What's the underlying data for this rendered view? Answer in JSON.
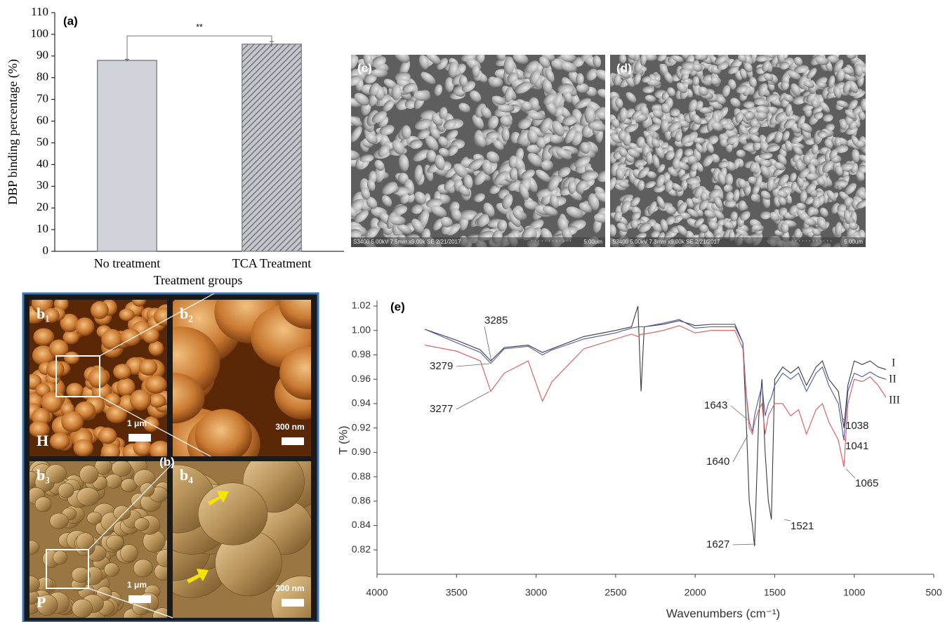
{
  "chart_data": [
    {
      "type": "bar",
      "panel": "(a)",
      "categories": [
        "No treatment",
        "TCA Treatment"
      ],
      "values": [
        88,
        95.5
      ],
      "errors": [
        0.5,
        1.2
      ],
      "colors": [
        "#d0d2da",
        "#5f636c"
      ],
      "hatch": [
        false,
        true
      ],
      "ylim": [
        0,
        110
      ],
      "yticks": [
        0,
        10,
        20,
        30,
        40,
        50,
        60,
        70,
        80,
        90,
        100,
        110
      ],
      "ylabel": "DBP binding percentage (%)",
      "xlabel": "Treatment groups",
      "annotation": "**"
    },
    {
      "type": "line",
      "panel": "(e)",
      "x": [
        3700,
        3500,
        3350,
        3285,
        3200,
        3050,
        2960,
        2900,
        2700,
        2500,
        2400,
        2360,
        2340,
        2320,
        2200,
        2100,
        2000,
        1900,
        1750,
        1700,
        1680,
        1660,
        1640,
        1627,
        1600,
        1580,
        1560,
        1540,
        1521,
        1500,
        1450,
        1400,
        1350,
        1300,
        1240,
        1200,
        1160,
        1100,
        1065,
        1040,
        1000,
        950,
        900,
        850,
        800
      ],
      "series": [
        {
          "name": "I",
          "color": "#3a3a3a",
          "values": [
            1.001,
            0.992,
            0.984,
            0.975,
            0.986,
            0.988,
            0.982,
            0.985,
            0.995,
            1.0,
            1.003,
            1.02,
            0.95,
            1.003,
            1.005,
            1.008,
            1.004,
            1.005,
            1.005,
            0.99,
            0.93,
            0.86,
            0.84,
            0.823,
            0.93,
            0.96,
            0.9,
            0.86,
            0.845,
            0.96,
            0.97,
            0.965,
            0.97,
            0.955,
            0.97,
            0.975,
            0.96,
            0.95,
            0.92,
            0.955,
            0.975,
            0.972,
            0.975,
            0.97,
            0.968
          ]
        },
        {
          "name": "II",
          "color": "#4a5aa8",
          "values": [
            1.001,
            0.99,
            0.982,
            0.973,
            0.985,
            0.987,
            0.98,
            0.984,
            0.993,
            0.998,
            1.002,
            1.003,
            1.003,
            1.003,
            1.006,
            1.009,
            1.002,
            1.003,
            1.003,
            0.99,
            0.95,
            0.925,
            0.917,
            0.93,
            0.945,
            0.955,
            0.93,
            0.94,
            0.945,
            0.955,
            0.965,
            0.96,
            0.965,
            0.95,
            0.965,
            0.97,
            0.955,
            0.94,
            0.91,
            0.95,
            0.965,
            0.962,
            0.966,
            0.962,
            0.96
          ]
        },
        {
          "name": "III",
          "color": "#d9575a",
          "values": [
            0.988,
            0.983,
            0.975,
            0.95,
            0.965,
            0.975,
            0.942,
            0.958,
            0.985,
            0.993,
            0.997,
            0.995,
            0.997,
            0.997,
            1.0,
            1.004,
            0.998,
            1.0,
            1.0,
            0.985,
            0.95,
            0.92,
            0.915,
            0.925,
            0.935,
            0.94,
            0.915,
            0.93,
            0.935,
            0.94,
            0.94,
            0.93,
            0.935,
            0.915,
            0.935,
            0.94,
            0.925,
            0.91,
            0.888,
            0.94,
            0.96,
            0.958,
            0.962,
            0.955,
            0.945
          ]
        }
      ],
      "xlim": [
        4000,
        500
      ],
      "xticks": [
        4000,
        3500,
        3000,
        2500,
        2000,
        1500,
        1000,
        500
      ],
      "ylim": [
        0.8,
        1.02
      ],
      "yticks": [
        0.82,
        0.84,
        0.86,
        0.88,
        {
          "value": 0.9,
          "label": "0.90"
        },
        0.92,
        0.94,
        0.96,
        0.98,
        {
          "value": 1,
          "label": "1.00"
        },
        1.02
      ],
      "xlabel": "Wavenumbers (cm⁻¹)",
      "ylabel": "T (%)",
      "peak_labels": [
        3285,
        3279,
        3277,
        1643,
        1640,
        1627,
        1521,
        1038,
        1041,
        1065
      ]
    }
  ],
  "sem": [
    {
      "label": "(c)",
      "footer": "S3400 5.00kV 7.5mm x9.00k SE  2/21/2017",
      "scale": "5.00um"
    },
    {
      "label": "(d)",
      "footer": "S3400 5.00kV 7.3mm x9.00k SE  2/21/2017",
      "scale": "5.00um"
    }
  ],
  "afm": {
    "label": "(b)",
    "panels": [
      {
        "label": "b₁",
        "mode": "H",
        "scale": "1 μm"
      },
      {
        "label": "b₂",
        "scale": "300 nm"
      },
      {
        "label": "b₃",
        "mode": "P",
        "scale": "1 μm"
      },
      {
        "label": "b₄",
        "scale": "300 nm"
      }
    ]
  }
}
